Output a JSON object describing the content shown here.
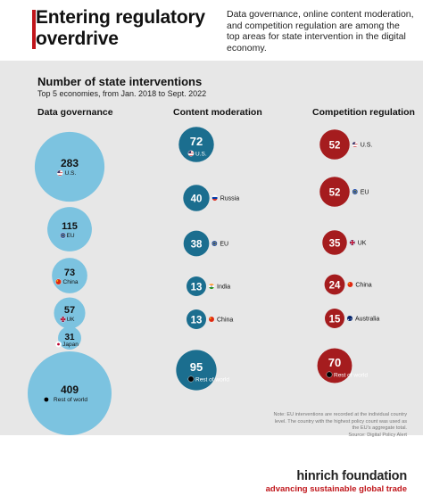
{
  "header": {
    "title": "Entering regulatory overdrive",
    "intro": "Data governance, online content moderation, and competition regulation are among the top areas for state intervention in the digital economy."
  },
  "chart_data": {
    "type": "bubble",
    "title": "Number of state interventions",
    "subtitle": "Top 5 economies, from Jan. 2018 to Sept. 2022",
    "colors": {
      "light_blue": "#7cc3e0",
      "teal": "#1b6e8f",
      "red": "#a51c1e"
    },
    "panels": [
      {
        "name": "Data governance",
        "color": "#7cc3e0",
        "points": [
          {
            "label": "U.S.",
            "value": 283,
            "flag": "flag-us-icon"
          },
          {
            "label": "EU",
            "value": 115,
            "flag": "flag-eu-icon"
          },
          {
            "label": "China",
            "value": 73,
            "flag": "flag-china-icon"
          },
          {
            "label": "UK",
            "value": 57,
            "flag": "flag-uk-icon"
          },
          {
            "label": "Japan",
            "value": 31,
            "flag": "flag-japan-icon"
          },
          {
            "label": "Rest of world",
            "value": 409,
            "flag": "dot-icon"
          }
        ]
      },
      {
        "name": "Content moderation",
        "color": "#1b6e8f",
        "points": [
          {
            "label": "U.S.",
            "value": 72,
            "flag": "flag-us-icon"
          },
          {
            "label": "Russia",
            "value": 40,
            "flag": "flag-russia-icon"
          },
          {
            "label": "EU",
            "value": 38,
            "flag": "flag-eu-icon"
          },
          {
            "label": "India",
            "value": 13,
            "flag": "flag-india-icon"
          },
          {
            "label": "China",
            "value": 13,
            "flag": "flag-china-icon"
          },
          {
            "label": "Rest of world",
            "value": 95,
            "flag": "dot-icon"
          }
        ]
      },
      {
        "name": "Competition regulation",
        "color": "#a51c1e",
        "points": [
          {
            "label": "U.S.",
            "value": 52,
            "flag": "flag-us-icon"
          },
          {
            "label": "EU",
            "value": 52,
            "flag": "flag-eu-icon"
          },
          {
            "label": "UK",
            "value": 35,
            "flag": "flag-uk-icon"
          },
          {
            "label": "China",
            "value": 24,
            "flag": "flag-china-icon"
          },
          {
            "label": "Australia",
            "value": 15,
            "flag": "flag-australia-icon"
          },
          {
            "label": "Rest of world",
            "value": 70,
            "flag": "dot-icon"
          }
        ]
      }
    ]
  },
  "footer": {
    "note": "Note: EU interventions are recorded at the individual country level. The country with the highest policy count was used as the EU's aggregate total.",
    "source": "Source: Digital Policy Alert",
    "brand_name": "hinrich foundation",
    "brand_tagline": "advancing sustainable global trade"
  }
}
